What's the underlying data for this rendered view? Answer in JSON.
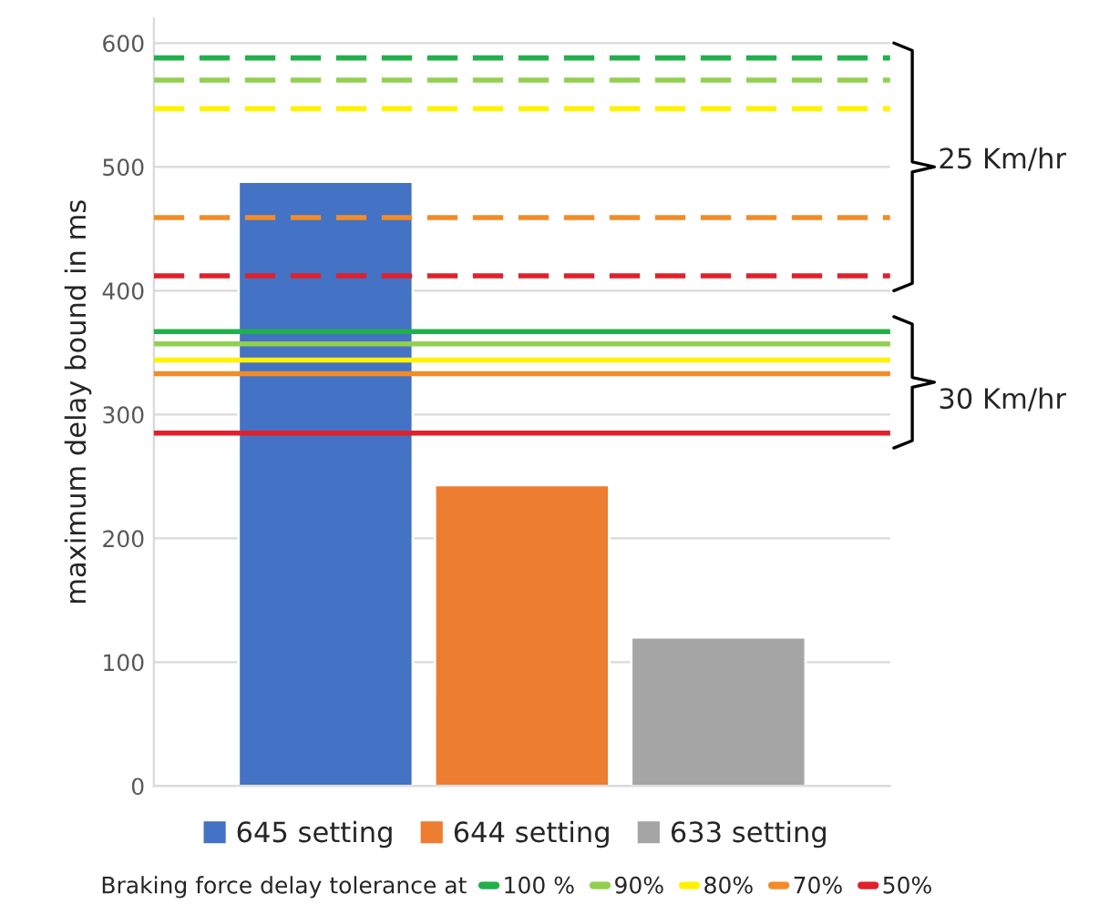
{
  "chart_data": {
    "type": "bar",
    "ylabel": "maximum delay bound in ms",
    "categories": [
      null
    ],
    "series": [
      {
        "name": "645 setting",
        "color": "#4472c4",
        "values": [
          488
        ]
      },
      {
        "name": "644 setting",
        "color": "#ed7d31",
        "values": [
          243
        ]
      },
      {
        "name": "633 setting",
        "color": "#a5a5a5",
        "values": [
          120
        ]
      },
      {
        "type": "line",
        "name": "100 %",
        "color": "#22b04c",
        "values": [
          null
        ]
      },
      {
        "type": "line",
        "name": "90%",
        "color": "#92d050",
        "values": [
          null
        ]
      },
      {
        "type": "line",
        "name": "80%",
        "color": "#fff200",
        "values": [
          null
        ]
      },
      {
        "type": "line",
        "name": "70%",
        "color": "#f28c28",
        "values": [
          null
        ]
      },
      {
        "type": "line",
        "name": "50%",
        "color": "#e0202a",
        "values": [
          null
        ]
      }
    ],
    "ylim": [
      0,
      620
    ],
    "yticks": [
      0,
      100,
      200,
      300,
      400,
      500,
      600
    ],
    "grid": "y",
    "legend": "bottom",
    "legend_title": "Braking force delay tolerance at",
    "ref_lines": [
      {
        "axis": "y",
        "value": 588,
        "color": "#22b04c",
        "line_style": "dashed"
      },
      {
        "axis": "y",
        "value": 570,
        "color": "#92d050",
        "line_style": "dashed"
      },
      {
        "axis": "y",
        "value": 547,
        "color": "#fff200",
        "line_style": "dashed"
      },
      {
        "axis": "y",
        "value": 459,
        "color": "#f28c28",
        "line_style": "dashed"
      },
      {
        "axis": "y",
        "value": 412,
        "color": "#e0202a",
        "line_style": "dashed"
      },
      {
        "axis": "y",
        "value": 367,
        "color": "#22b04c",
        "line_style": "solid"
      },
      {
        "axis": "y",
        "value": 357,
        "color": "#92d050",
        "line_style": "solid"
      },
      {
        "axis": "y",
        "value": 344,
        "color": "#fff200",
        "line_style": "solid"
      },
      {
        "axis": "y",
        "value": 333,
        "color": "#f28c28",
        "line_style": "solid"
      },
      {
        "axis": "y",
        "value": 285,
        "color": "#e0202a",
        "line_style": "solid"
      }
    ],
    "annotations": [
      "25 Km/hr",
      "30 Km/hr"
    ]
  }
}
